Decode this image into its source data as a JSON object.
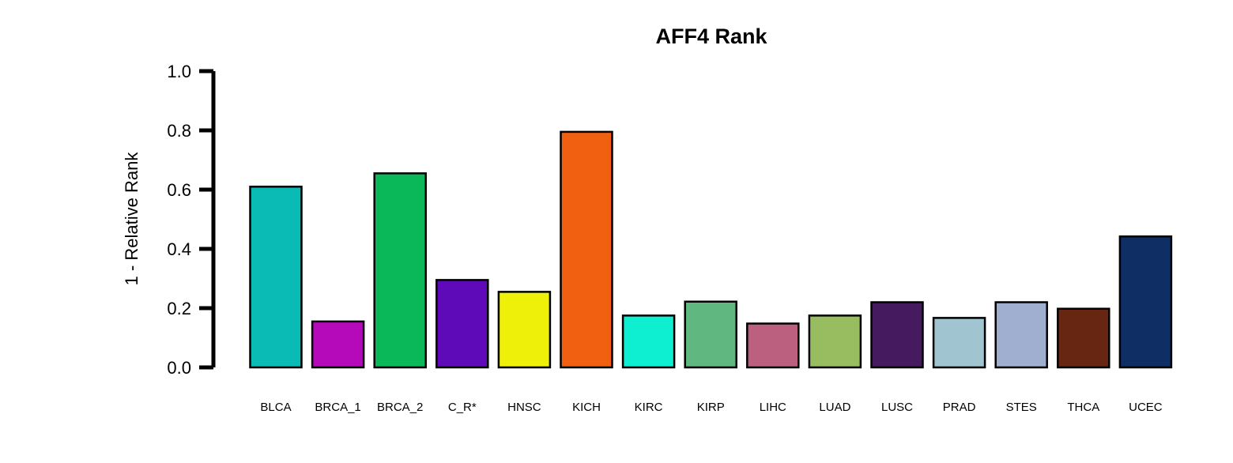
{
  "chart_data": {
    "type": "bar",
    "title": "AFF4 Rank",
    "ylabel": "1 - Relative Rank",
    "xlabel": "",
    "ylim": [
      0,
      1.0
    ],
    "yticks": [
      "0.0",
      "0.2",
      "0.4",
      "0.6",
      "0.8",
      "1.0"
    ],
    "grid": false,
    "categories": [
      "BLCA",
      "BRCA_1",
      "BRCA_2",
      "C_R*",
      "HNSC",
      "KICH",
      "KIRC",
      "KIRP",
      "LIHC",
      "LUAD",
      "LUSC",
      "PRAD",
      "STES",
      "THCA",
      "UCEC"
    ],
    "values": [
      0.61,
      0.155,
      0.655,
      0.295,
      0.255,
      0.795,
      0.175,
      0.222,
      0.148,
      0.175,
      0.22,
      0.167,
      0.22,
      0.198,
      0.442
    ],
    "colors": [
      "#0ABAB5",
      "#B40ABA",
      "#0AB85A",
      "#5E0AB8",
      "#EEF00A",
      "#F06010",
      "#0EEED0",
      "#60B880",
      "#BC6080",
      "#98BC60",
      "#461A5E",
      "#A0C4D0",
      "#A0AED0",
      "#662612",
      "#0E2E64"
    ]
  }
}
